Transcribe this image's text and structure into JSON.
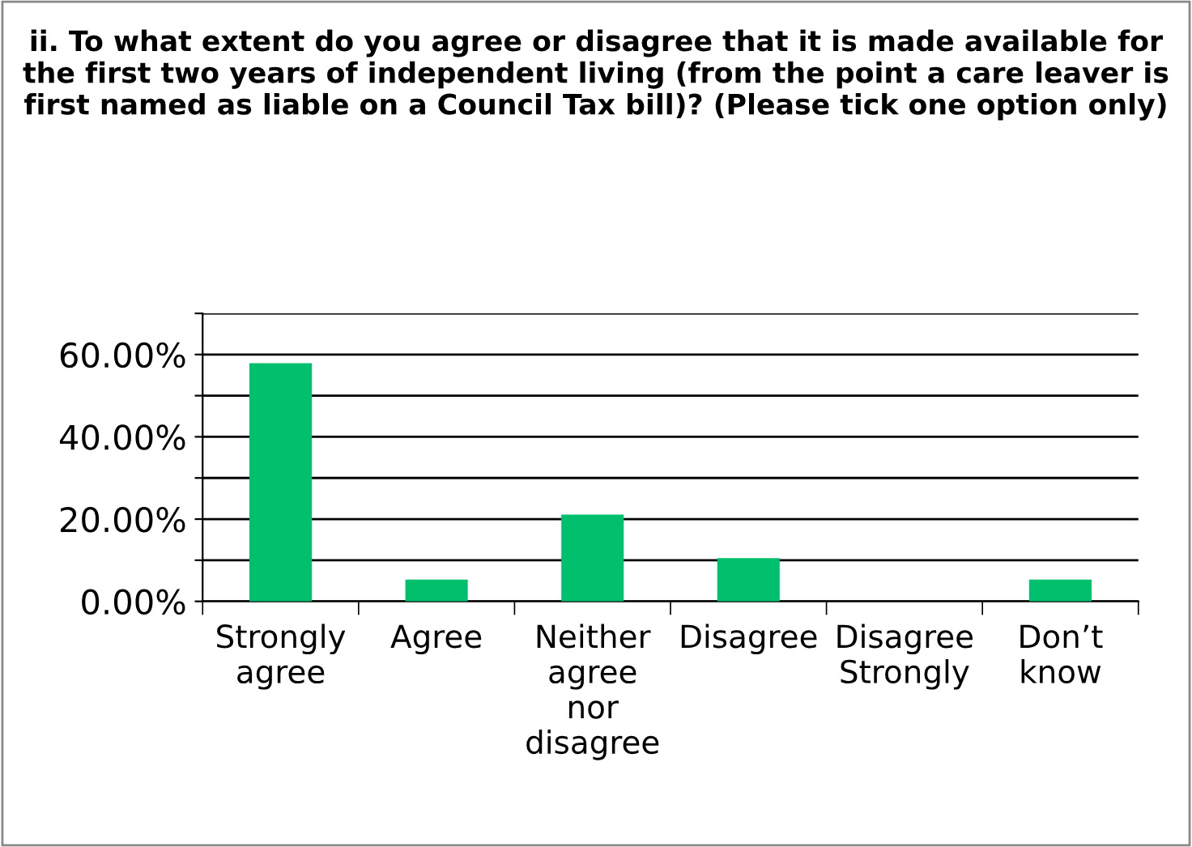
{
  "chart_data": {
    "type": "bar",
    "title": "ii. To what extent do you agree or disagree that it is made available for the first two years of independent living (from the point a care leaver is first named as liable on a Council Tax bill)? (Please tick one option only)",
    "categories": [
      "Strongly agree",
      "Agree",
      "Neither agree nor disagree",
      "Disagree",
      "Disagree Strongly",
      "Don’t know"
    ],
    "values": [
      57.9,
      5.3,
      21.1,
      10.5,
      0,
      5.3
    ],
    "color": "#00c06e",
    "ylim": [
      0,
      70
    ],
    "yticks": [
      {
        "value": 0,
        "label": "0.00%"
      },
      {
        "value": 10,
        "label": null
      },
      {
        "value": 20,
        "label": "20.00%"
      },
      {
        "value": 30,
        "label": null
      },
      {
        "value": 40,
        "label": "40.00%"
      },
      {
        "value": 50,
        "label": null
      },
      {
        "value": 60,
        "label": "60.00%"
      },
      {
        "value": 70,
        "label": null
      }
    ],
    "grid": "y",
    "legend": false
  }
}
